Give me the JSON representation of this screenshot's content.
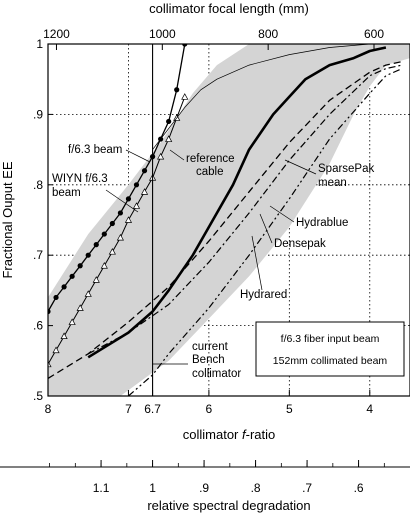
{
  "chart_data": {
    "type": "line",
    "top_axis": {
      "label": "collimator focal length (mm)",
      "ticks": [
        "1200",
        "1000",
        "800",
        "600"
      ],
      "tick_values": [
        1200,
        1000,
        800,
        600
      ]
    },
    "x_axis": {
      "label_prefix": "collimator ",
      "label_italic": "f",
      "label_suffix": "-ratio",
      "xlim": [
        8,
        3.5
      ],
      "ticks": [
        "8",
        "7",
        "6.7",
        "6",
        "5",
        "4"
      ],
      "tick_values": [
        8,
        7,
        6.7,
        6,
        5,
        4
      ]
    },
    "y_axis": {
      "label": "Fractional Ouput EE",
      "ylim": [
        0.5,
        1.0
      ],
      "ticks": [
        ".5",
        ".6",
        ".7",
        ".8",
        ".9",
        "1"
      ],
      "tick_values": [
        0.5,
        0.6,
        0.7,
        0.8,
        0.9,
        1.0
      ]
    },
    "bottom_axis": {
      "label": "relative spectral degradation",
      "ticks": [
        "1.1",
        "1",
        ".9",
        ".8",
        ".7",
        ".6"
      ],
      "tick_values": [
        1.1,
        1.0,
        0.9,
        0.8,
        0.7,
        0.6
      ]
    },
    "grid": true,
    "vertical_line_at": 6.7,
    "shaded_band": {
      "upper": [
        [
          8,
          0.64
        ],
        [
          7.5,
          0.73
        ],
        [
          7,
          0.8
        ],
        [
          6.6,
          0.86
        ],
        [
          6.2,
          0.93
        ],
        [
          5.9,
          0.97
        ],
        [
          5.5,
          1.0
        ],
        [
          3.5,
          1.0
        ]
      ],
      "lower": [
        [
          8,
          0.5
        ],
        [
          7.1,
          0.5
        ],
        [
          6.5,
          0.55
        ],
        [
          6,
          0.61
        ],
        [
          5.5,
          0.67
        ],
        [
          5,
          0.74
        ],
        [
          4.5,
          0.83
        ],
        [
          4.2,
          0.9
        ],
        [
          4.0,
          0.94
        ],
        [
          3.8,
          0.97
        ],
        [
          3.5,
          0.98
        ]
      ]
    },
    "series": [
      {
        "name": "f/6.3 beam",
        "style": "solid-dots",
        "x": [
          8,
          7.9,
          7.8,
          7.7,
          7.6,
          7.5,
          7.4,
          7.3,
          7.2,
          7.1,
          7.0,
          6.9,
          6.8,
          6.7,
          6.6,
          6.5,
          6.4,
          6.3
        ],
        "y": [
          0.62,
          0.64,
          0.655,
          0.67,
          0.685,
          0.7,
          0.715,
          0.73,
          0.745,
          0.76,
          0.78,
          0.8,
          0.82,
          0.84,
          0.865,
          0.89,
          0.935,
          1.0
        ]
      },
      {
        "name": "WIYN f/6.3 beam",
        "style": "solid-triangles",
        "x": [
          8,
          7.9,
          7.8,
          7.7,
          7.6,
          7.5,
          7.4,
          7.3,
          7.2,
          7.1,
          7.0,
          6.9,
          6.8,
          6.7,
          6.6,
          6.5,
          6.4,
          6.3
        ],
        "y": [
          0.545,
          0.565,
          0.585,
          0.605,
          0.625,
          0.645,
          0.665,
          0.685,
          0.705,
          0.725,
          0.75,
          0.77,
          0.79,
          0.81,
          0.84,
          0.865,
          0.895,
          0.925
        ]
      },
      {
        "name": "reference cable",
        "style": "thin",
        "x": [
          6.7,
          6.5,
          6.3,
          6.1,
          5.9,
          5.5,
          5.0,
          4.5,
          4.0,
          3.5
        ],
        "y": [
          0.85,
          0.88,
          0.91,
          0.935,
          0.95,
          0.97,
          0.985,
          0.995,
          1.0,
          1.0
        ]
      },
      {
        "name": "SparsePak mean",
        "style": "thick",
        "x": [
          7.5,
          7.0,
          6.7,
          6.5,
          6.2,
          6.0,
          5.7,
          5.5,
          5.2,
          5.0,
          4.8,
          4.5,
          4.2,
          4.0,
          3.8
        ],
        "y": [
          0.555,
          0.59,
          0.62,
          0.65,
          0.7,
          0.74,
          0.8,
          0.85,
          0.9,
          0.925,
          0.95,
          0.97,
          0.98,
          0.99,
          0.995
        ]
      },
      {
        "name": "Hydrablue",
        "style": "dashed",
        "x": [
          8.0,
          7.5,
          7.0,
          6.5,
          6.0,
          5.5,
          5.0,
          4.5,
          4.0,
          3.8,
          3.6
        ],
        "y": [
          0.525,
          0.56,
          0.605,
          0.655,
          0.72,
          0.79,
          0.86,
          0.92,
          0.96,
          0.97,
          0.975
        ]
      },
      {
        "name": "Densepak",
        "style": "dash-dot",
        "x": [
          7.5,
          7.0,
          6.5,
          6.0,
          5.5,
          5.0,
          4.5,
          4.0,
          3.8,
          3.6
        ],
        "y": [
          0.56,
          0.59,
          0.63,
          0.69,
          0.76,
          0.835,
          0.9,
          0.955,
          0.965,
          0.97
        ]
      },
      {
        "name": "Hydrared",
        "style": "dash-dot-dot",
        "x": [
          7.0,
          6.7,
          6.5,
          6.0,
          5.5,
          5.0,
          4.5,
          4.0,
          3.8,
          3.6
        ],
        "y": [
          0.5,
          0.53,
          0.56,
          0.625,
          0.7,
          0.78,
          0.865,
          0.93,
          0.955,
          0.965
        ]
      }
    ],
    "annotations": [
      {
        "key": "f63",
        "text": "f/6.3 beam"
      },
      {
        "key": "wiyn1",
        "text": "WIYN f/6.3"
      },
      {
        "key": "wiyn2",
        "text": "beam"
      },
      {
        "key": "ref1",
        "text": "reference"
      },
      {
        "key": "ref2",
        "text": "cable"
      },
      {
        "key": "sp1",
        "text": "SparsePak"
      },
      {
        "key": "sp2",
        "text": "mean"
      },
      {
        "key": "hb",
        "text": "Hydrablue"
      },
      {
        "key": "dp",
        "text": "Densepak"
      },
      {
        "key": "hr",
        "text": "Hydrared"
      },
      {
        "key": "cb1",
        "text": "current"
      },
      {
        "key": "cb2",
        "text": "Bench"
      },
      {
        "key": "cb3",
        "text": "collimator"
      }
    ],
    "legend_box": {
      "line1": "f/6.3 fiber input beam",
      "line2": "152mm collimated beam"
    }
  }
}
